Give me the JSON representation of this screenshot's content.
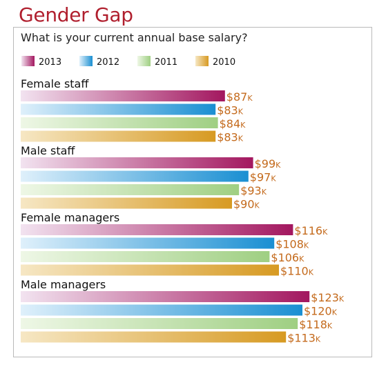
{
  "title": "Gender Gap",
  "subtitle": "What is your current annual base salary?",
  "chart_data": {
    "type": "bar",
    "orientation": "horizontal",
    "title": "Gender Gap",
    "subtitle": "What is your current annual base salary?",
    "unit_prefix": "$",
    "unit_suffix": "K",
    "categories": [
      "Female staff",
      "Male staff",
      "Female managers",
      "Male managers"
    ],
    "series": [
      {
        "name": "2013",
        "values": [
          87,
          99,
          116,
          123
        ],
        "color": "#a3175f",
        "light": "#f2e3f0"
      },
      {
        "name": "2012",
        "values": [
          83,
          97,
          108,
          120
        ],
        "color": "#1a8fd2",
        "light": "#dff0fb"
      },
      {
        "name": "2011",
        "values": [
          84,
          93,
          106,
          118
        ],
        "color": "#9fcf82",
        "light": "#eef7e6"
      },
      {
        "name": "2010",
        "values": [
          83,
          90,
          110,
          113
        ],
        "color": "#d79a22",
        "light": "#f6e7c4"
      }
    ],
    "legend_position": "top-left",
    "grid": false
  }
}
